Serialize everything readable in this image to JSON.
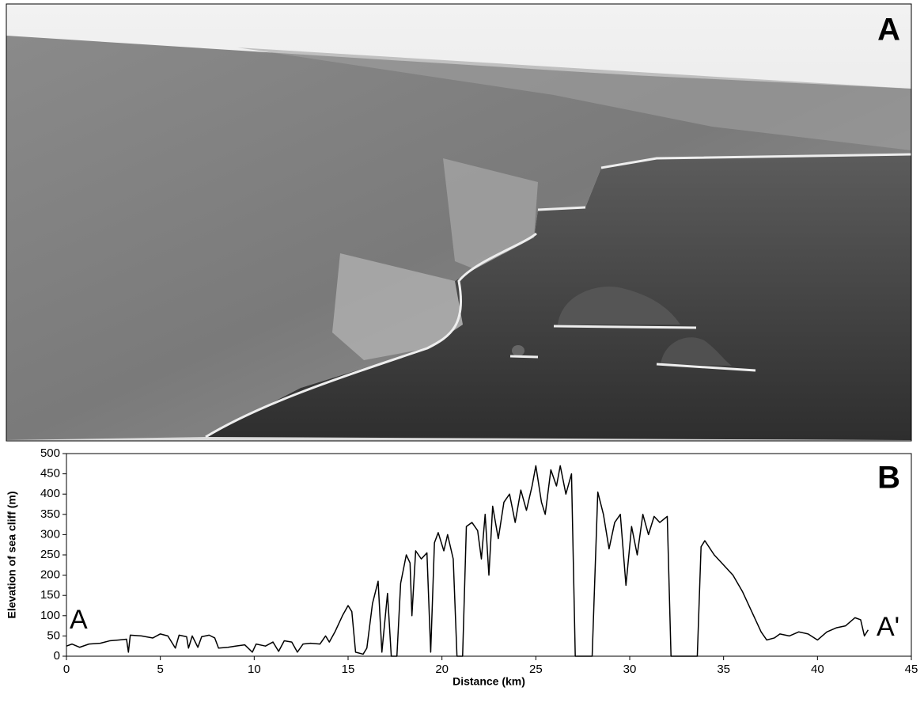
{
  "photo": {
    "label": "A"
  },
  "chart_data": {
    "type": "line",
    "xlabel": "Distance (km)",
    "ylabel": "Elevation of sea cliff (m)",
    "annotations": [
      "B",
      "A",
      "A'"
    ],
    "color": "#000000",
    "xlim": [
      0,
      45
    ],
    "xticks": [
      0,
      5,
      10,
      15,
      20,
      25,
      30,
      35,
      40,
      45
    ],
    "ylim": [
      0,
      500
    ],
    "yticks": [
      0,
      50,
      100,
      150,
      200,
      250,
      300,
      350,
      400,
      450,
      500
    ],
    "grid": false,
    "x": [
      0,
      0.3,
      0.7,
      1.2,
      1.8,
      2.3,
      2.8,
      3.2,
      3.3,
      3.4,
      4,
      4.6,
      5,
      5.4,
      5.8,
      6,
      6.4,
      6.5,
      6.7,
      7,
      7.2,
      7.6,
      7.9,
      8.1,
      8.6,
      9,
      9.5,
      9.9,
      10.1,
      10.6,
      11,
      11.3,
      11.6,
      12,
      12.3,
      12.6,
      13,
      13.5,
      13.8,
      14,
      14.3,
      14.7,
      15,
      15.2,
      15.4,
      15.8,
      16,
      16.3,
      16.6,
      16.8,
      17.1,
      17.3,
      17.6,
      17.8,
      18.1,
      18.3,
      18.4,
      18.6,
      18.9,
      19.2,
      19.4,
      19.6,
      19.8,
      20.1,
      20.3,
      20.6,
      20.8,
      21.1,
      21.3,
      21.6,
      21.9,
      22.1,
      22.3,
      22.5,
      22.7,
      23,
      23.3,
      23.6,
      23.9,
      24.2,
      24.5,
      24.8,
      25,
      25.3,
      25.5,
      25.8,
      26.1,
      26.3,
      26.6,
      26.9,
      27.1,
      28,
      28.3,
      28.6,
      28.9,
      29.2,
      29.5,
      29.8,
      30.1,
      30.4,
      30.7,
      31,
      31.3,
      31.6,
      32,
      32.2,
      33.6,
      33.8,
      34,
      34.5,
      35,
      35.5,
      36,
      36.5,
      37,
      37.3,
      37.7,
      38,
      38.5,
      39,
      39.5,
      40,
      40.5,
      41,
      41.5,
      42,
      42.3,
      42.5,
      42.7
    ],
    "values": [
      25,
      30,
      22,
      30,
      32,
      38,
      40,
      42,
      10,
      52,
      50,
      45,
      55,
      50,
      20,
      52,
      48,
      20,
      50,
      22,
      48,
      52,
      45,
      20,
      22,
      25,
      28,
      10,
      30,
      25,
      35,
      12,
      38,
      35,
      10,
      30,
      32,
      30,
      50,
      35,
      60,
      100,
      125,
      110,
      10,
      5,
      20,
      130,
      185,
      10,
      155,
      0,
      0,
      180,
      250,
      230,
      100,
      260,
      240,
      255,
      10,
      280,
      305,
      260,
      300,
      240,
      0,
      0,
      320,
      330,
      310,
      240,
      350,
      200,
      370,
      290,
      380,
      400,
      330,
      410,
      360,
      420,
      470,
      380,
      350,
      460,
      420,
      470,
      400,
      450,
      0,
      0,
      405,
      350,
      265,
      330,
      350,
      175,
      320,
      250,
      350,
      300,
      345,
      330,
      345,
      0,
      0,
      270,
      285,
      250,
      225,
      200,
      160,
      110,
      60,
      40,
      45,
      55,
      50,
      60,
      55,
      40,
      60,
      70,
      75,
      95,
      90,
      50,
      65
    ]
  }
}
